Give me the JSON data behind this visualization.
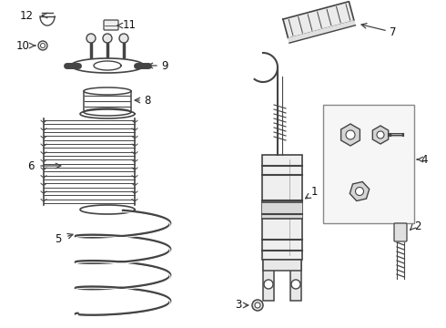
{
  "bg_color": "#ffffff",
  "fig_width": 4.9,
  "fig_height": 3.6,
  "dpi": 100,
  "line_color": "#444444",
  "text_color": "#111111",
  "font_size": 8.5
}
